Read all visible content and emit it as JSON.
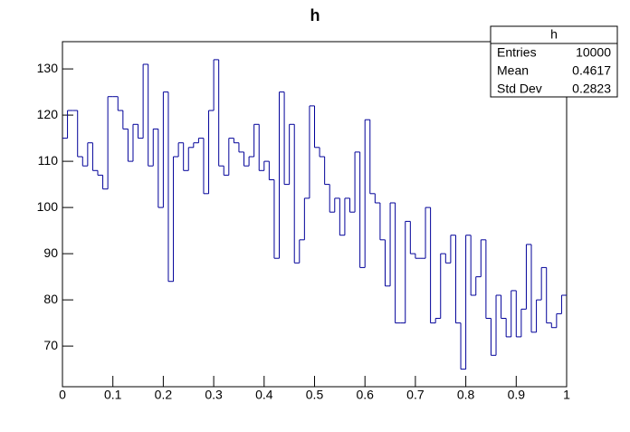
{
  "chart_data": {
    "type": "histogram",
    "title": "h",
    "color": "#000099",
    "bins": [
      0,
      0.01,
      0.02,
      0.03,
      0.04,
      0.05,
      0.06,
      0.07,
      0.08,
      0.09,
      0.1,
      0.11,
      0.12,
      0.13,
      0.14,
      0.15,
      0.16,
      0.17,
      0.18,
      0.19,
      0.2,
      0.21,
      0.22,
      0.23,
      0.24,
      0.25,
      0.26,
      0.27,
      0.28,
      0.29,
      0.3,
      0.31,
      0.32,
      0.33,
      0.34,
      0.35,
      0.36,
      0.37,
      0.38,
      0.39,
      0.4,
      0.41,
      0.42,
      0.43,
      0.44,
      0.45,
      0.46,
      0.47,
      0.48,
      0.49,
      0.5,
      0.51,
      0.52,
      0.53,
      0.54,
      0.55,
      0.56,
      0.57,
      0.58,
      0.59,
      0.6,
      0.61,
      0.62,
      0.63,
      0.64,
      0.65,
      0.66,
      0.67,
      0.68,
      0.69,
      0.7,
      0.71,
      0.72,
      0.73,
      0.74,
      0.75,
      0.76,
      0.77,
      0.78,
      0.79,
      0.8,
      0.81,
      0.82,
      0.83,
      0.84,
      0.85,
      0.86,
      0.87,
      0.88,
      0.89,
      0.9,
      0.91,
      0.92,
      0.93,
      0.94,
      0.95,
      0.96,
      0.97,
      0.98,
      0.99,
      1
    ],
    "values": [
      115,
      121,
      121,
      111,
      109,
      114,
      108,
      107,
      104,
      124,
      124,
      121,
      117,
      110,
      118,
      115,
      131,
      109,
      117,
      100,
      125,
      84,
      111,
      114,
      108,
      113,
      114,
      115,
      103,
      121,
      132,
      109,
      107,
      115,
      114,
      112,
      109,
      111,
      118,
      108,
      110,
      106,
      89,
      125,
      105,
      118,
      88,
      93,
      102,
      122,
      113,
      111,
      105,
      99,
      102,
      94,
      102,
      99,
      112,
      87,
      119,
      103,
      101,
      93,
      83,
      101,
      75,
      75,
      97,
      90,
      89,
      89,
      100,
      75,
      76,
      90,
      88,
      94,
      75,
      65,
      94,
      81,
      85,
      93,
      76,
      68,
      81,
      76,
      72,
      82,
      72,
      78,
      92,
      73,
      80,
      87,
      75,
      74,
      77,
      81
    ],
    "xlim": [
      0,
      1
    ],
    "ylim": [
      61.2,
      135.9
    ],
    "xticks": [
      0,
      0.1,
      0.2,
      0.3,
      0.4,
      0.5,
      0.6,
      0.7,
      0.8,
      0.9,
      1
    ],
    "yticks": [
      70,
      80,
      90,
      100,
      110,
      120,
      130
    ],
    "stats": {
      "title": "h",
      "rows": [
        [
          "Entries",
          "10000"
        ],
        [
          "Mean",
          "0.4617"
        ],
        [
          "Std Dev",
          "0.2823"
        ]
      ]
    }
  }
}
